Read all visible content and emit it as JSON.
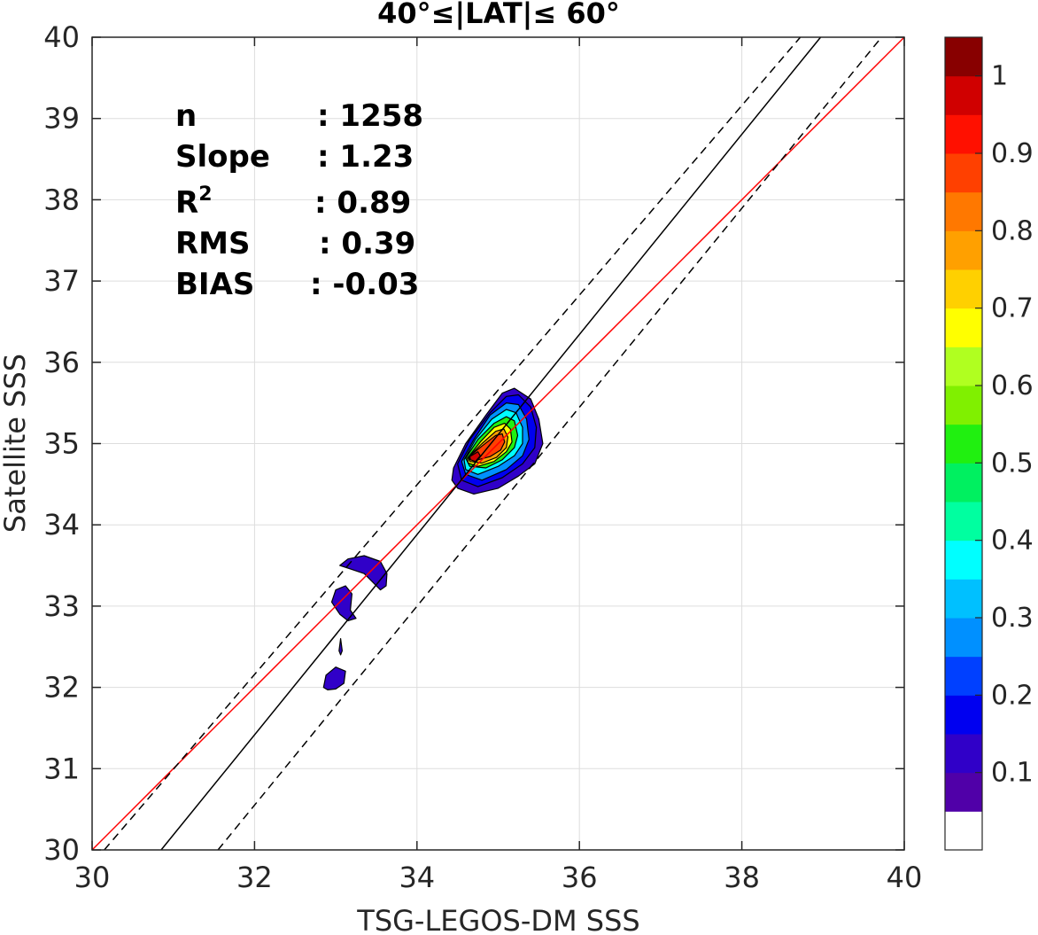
{
  "chart_data": {
    "type": "contour",
    "title": "40°≤|LAT|≤ 60°",
    "xlabel": "TSG-LEGOS-DM SSS",
    "ylabel": "Satellite SSS",
    "xlim": [
      30,
      40
    ],
    "ylim": [
      30,
      40
    ],
    "xticks": [
      "30",
      "32",
      "34",
      "36",
      "38",
      "40"
    ],
    "yticks": [
      "30",
      "31",
      "32",
      "33",
      "34",
      "35",
      "36",
      "37",
      "38",
      "39",
      "40"
    ],
    "grid": true,
    "stats": [
      {
        "key": "n",
        "value": ": 1258"
      },
      {
        "key": "Slope",
        "value": ": 1.23"
      },
      {
        "key": "R",
        "sup": "2",
        "value": ": 0.89"
      },
      {
        "key": "RMS",
        "value": ": 0.39"
      },
      {
        "key": "BIAS",
        "value": ": -0.03"
      }
    ],
    "lines": [
      {
        "role": "identity",
        "color": "#ff0000",
        "points": [
          [
            30,
            30
          ],
          [
            40,
            40
          ]
        ]
      },
      {
        "role": "regression",
        "color": "#000000",
        "points": [
          [
            30.85,
            30
          ],
          [
            38.97,
            40
          ]
        ]
      },
      {
        "role": "regression-upper",
        "color": "#000000",
        "dash": true,
        "points": [
          [
            30.15,
            30
          ],
          [
            38.72,
            40
          ]
        ]
      },
      {
        "role": "regression-lower",
        "color": "#000000",
        "dash": true,
        "points": [
          [
            31.55,
            30
          ],
          [
            39.72,
            40
          ]
        ]
      }
    ],
    "colorbar": {
      "ticks": [
        "0.1",
        "0.2",
        "0.3",
        "0.4",
        "0.5",
        "0.6",
        "0.7",
        "0.8",
        "0.9",
        "1"
      ],
      "levels": [
        "#ffffff",
        "#5000a8",
        "#3000c8",
        "#0000f0",
        "#0040ff",
        "#0090ff",
        "#00c0ff",
        "#00ffff",
        "#00ffa0",
        "#00f060",
        "#20f010",
        "#80f000",
        "#b0ff20",
        "#ffff00",
        "#ffd000",
        "#ffa000",
        "#ff7800",
        "#ff4000",
        "#ff1000",
        "#d00000",
        "#880000"
      ]
    },
    "contours": [
      {
        "color": "#3000c8",
        "points": [
          [
            34.45,
            34.7
          ],
          [
            34.6,
            35.0
          ],
          [
            34.85,
            35.35
          ],
          [
            35.05,
            35.62
          ],
          [
            35.2,
            35.68
          ],
          [
            35.4,
            35.55
          ],
          [
            35.5,
            35.3
          ],
          [
            35.55,
            35.0
          ],
          [
            35.45,
            34.75
          ],
          [
            35.25,
            34.6
          ],
          [
            35.0,
            34.45
          ],
          [
            34.7,
            34.38
          ],
          [
            34.5,
            34.45
          ],
          [
            34.43,
            34.55
          ]
        ]
      },
      {
        "color": "#0000f0",
        "points": [
          [
            34.5,
            34.75
          ],
          [
            34.65,
            35.05
          ],
          [
            34.9,
            35.38
          ],
          [
            35.1,
            35.58
          ],
          [
            35.25,
            35.6
          ],
          [
            35.4,
            35.45
          ],
          [
            35.47,
            35.2
          ],
          [
            35.45,
            34.95
          ],
          [
            35.3,
            34.75
          ],
          [
            35.05,
            34.58
          ],
          [
            34.75,
            34.47
          ],
          [
            34.55,
            34.55
          ]
        ]
      },
      {
        "color": "#0090ff",
        "points": [
          [
            34.55,
            34.78
          ],
          [
            34.7,
            35.05
          ],
          [
            34.9,
            35.35
          ],
          [
            35.1,
            35.5
          ],
          [
            35.25,
            35.48
          ],
          [
            35.35,
            35.3
          ],
          [
            35.38,
            35.05
          ],
          [
            35.3,
            34.85
          ],
          [
            35.1,
            34.68
          ],
          [
            34.8,
            34.55
          ],
          [
            34.6,
            34.62
          ]
        ]
      },
      {
        "color": "#00ffff",
        "points": [
          [
            34.58,
            34.8
          ],
          [
            34.72,
            35.05
          ],
          [
            34.92,
            35.3
          ],
          [
            35.1,
            35.42
          ],
          [
            35.22,
            35.38
          ],
          [
            35.3,
            35.2
          ],
          [
            35.3,
            35.0
          ],
          [
            35.2,
            34.85
          ],
          [
            35.0,
            34.72
          ],
          [
            34.75,
            34.62
          ],
          [
            34.6,
            34.68
          ]
        ]
      },
      {
        "color": "#20f010",
        "points": [
          [
            34.6,
            34.82
          ],
          [
            34.75,
            35.05
          ],
          [
            34.95,
            35.25
          ],
          [
            35.1,
            35.33
          ],
          [
            35.2,
            35.28
          ],
          [
            35.24,
            35.1
          ],
          [
            35.2,
            34.95
          ],
          [
            35.05,
            34.8
          ],
          [
            34.85,
            34.7
          ],
          [
            34.65,
            34.72
          ]
        ]
      },
      {
        "color": "#ffff00",
        "points": [
          [
            34.62,
            34.82
          ],
          [
            34.78,
            35.02
          ],
          [
            34.95,
            35.2
          ],
          [
            35.08,
            35.25
          ],
          [
            35.15,
            35.18
          ],
          [
            35.17,
            35.02
          ],
          [
            35.1,
            34.9
          ],
          [
            34.95,
            34.78
          ],
          [
            34.75,
            34.72
          ],
          [
            34.63,
            34.76
          ]
        ]
      },
      {
        "color": "#ffa000",
        "points": [
          [
            34.63,
            34.83
          ],
          [
            34.8,
            35.0
          ],
          [
            34.97,
            35.15
          ],
          [
            35.07,
            35.18
          ],
          [
            35.12,
            35.08
          ],
          [
            35.1,
            34.95
          ],
          [
            34.98,
            34.83
          ],
          [
            34.8,
            34.76
          ],
          [
            34.65,
            34.78
          ]
        ]
      },
      {
        "color": "#ff4000",
        "points": [
          [
            34.64,
            34.84
          ],
          [
            34.8,
            34.97
          ],
          [
            34.97,
            35.1
          ],
          [
            35.05,
            35.12
          ],
          [
            35.08,
            35.02
          ],
          [
            35.03,
            34.92
          ],
          [
            34.9,
            34.84
          ],
          [
            34.75,
            34.8
          ],
          [
            34.65,
            34.8
          ]
        ]
      },
      {
        "color": "#d00000",
        "points": [
          [
            34.65,
            34.84
          ],
          [
            34.75,
            34.9
          ],
          [
            34.78,
            34.85
          ],
          [
            34.72,
            34.78
          ],
          [
            34.66,
            34.8
          ]
        ]
      },
      {
        "color": "#3000c8",
        "points": [
          [
            33.05,
            33.5
          ],
          [
            33.15,
            33.58
          ],
          [
            33.35,
            33.62
          ],
          [
            33.55,
            33.55
          ],
          [
            33.63,
            33.4
          ],
          [
            33.62,
            33.25
          ],
          [
            33.55,
            33.2
          ],
          [
            33.45,
            33.3
          ],
          [
            33.35,
            33.4
          ],
          [
            33.2,
            33.45
          ]
        ]
      },
      {
        "color": "#3000c8",
        "points": [
          [
            32.95,
            33.05
          ],
          [
            33.0,
            33.2
          ],
          [
            33.12,
            33.25
          ],
          [
            33.2,
            33.15
          ],
          [
            33.18,
            32.95
          ],
          [
            33.25,
            32.85
          ],
          [
            33.15,
            32.82
          ],
          [
            33.05,
            32.9
          ]
        ]
      },
      {
        "color": "#3000c8",
        "points": [
          [
            33.04,
            32.45
          ],
          [
            33.06,
            32.6
          ],
          [
            33.08,
            32.45
          ],
          [
            33.06,
            32.4
          ]
        ]
      },
      {
        "color": "#3000c8",
        "points": [
          [
            32.85,
            32.0
          ],
          [
            32.88,
            32.15
          ],
          [
            33.0,
            32.25
          ],
          [
            33.12,
            32.2
          ],
          [
            33.1,
            32.05
          ],
          [
            33.0,
            31.98
          ],
          [
            32.9,
            31.97
          ]
        ]
      }
    ]
  }
}
